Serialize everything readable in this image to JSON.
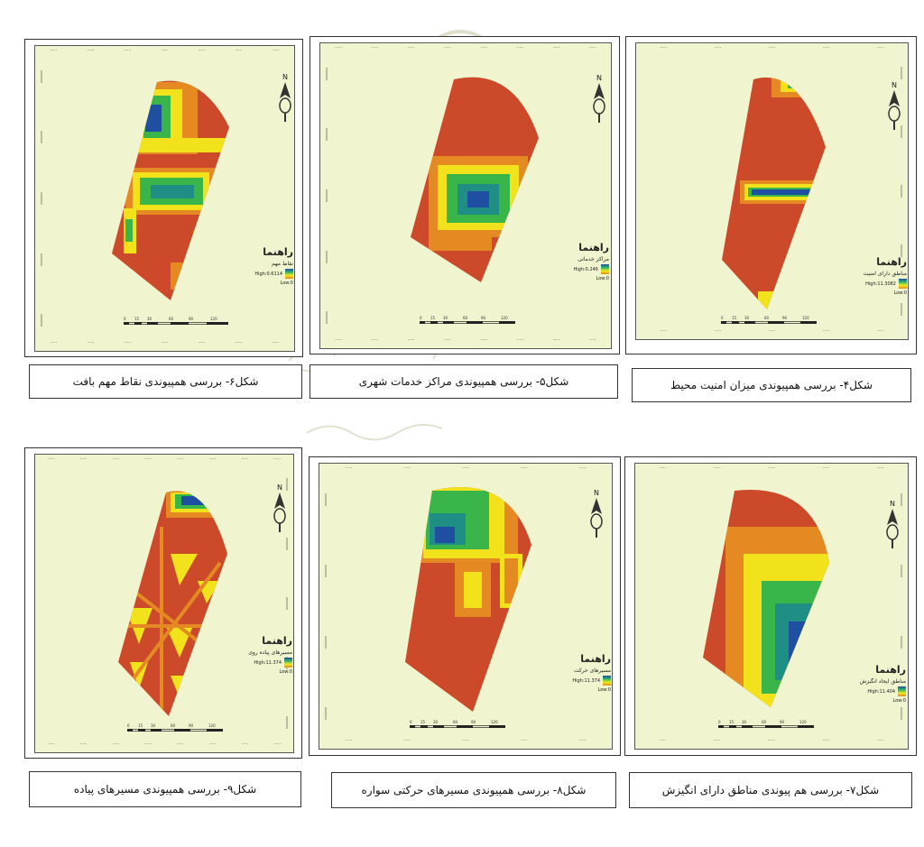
{
  "figures": [
    {
      "id": "fig6",
      "caption": "شکل۶- بررسی همپیوندی نقاط مهم بافت",
      "legend_title": "راهنما",
      "legend_sub": "نقاط مهم",
      "legend_high": "High:0.6114",
      "legend_low": "Low:0"
    },
    {
      "id": "fig5",
      "caption": "شکل۵- بررسی همپیوندی مراکز خدمات شهری",
      "legend_title": "راهنما",
      "legend_sub": "مراکز خدماتی",
      "legend_high": "High:0.246",
      "legend_low": "Low:0"
    },
    {
      "id": "fig4",
      "caption": "شکل۴- بررسی همپیوندی میزان امنیت محیط",
      "legend_title": "راهنما",
      "legend_sub": "مناطق دارای امنیت",
      "legend_high": "High:11.3082",
      "legend_low": "Low:0"
    },
    {
      "id": "fig9",
      "caption": "شکل۹- بررسی همپیوندی مسیرهای پیاده",
      "legend_title": "راهنما",
      "legend_sub": "مسیرهای پیاده روی",
      "legend_high": "High:11.374",
      "legend_low": "Low:0"
    },
    {
      "id": "fig8",
      "caption": "شکل۸- بررسی همپیوندی مسیرهای حرکتی سواره",
      "legend_title": "راهنما",
      "legend_sub": "مسیرهای حرکت",
      "legend_high": "High:11.374",
      "legend_low": "Low:0"
    },
    {
      "id": "fig7",
      "caption": "شکل۷- بررسی هم پیوندی مناطق دارای انگیزش",
      "legend_title": "راهنما",
      "legend_sub": "مناطق ایجاد انگیزش",
      "legend_high": "High:11.404",
      "legend_low": "Low:0"
    }
  ],
  "scale_labels": [
    "0",
    "15",
    "30",
    "60",
    "90",
    "120"
  ],
  "north_label": "N",
  "colors": {
    "map_bg": "#f0f5cf",
    "red": "#cc4a2a",
    "orange": "#e58a22",
    "yellow": "#f2e21c",
    "green": "#39b54a",
    "teal": "#1f8f86",
    "blue": "#1f4fa0"
  }
}
